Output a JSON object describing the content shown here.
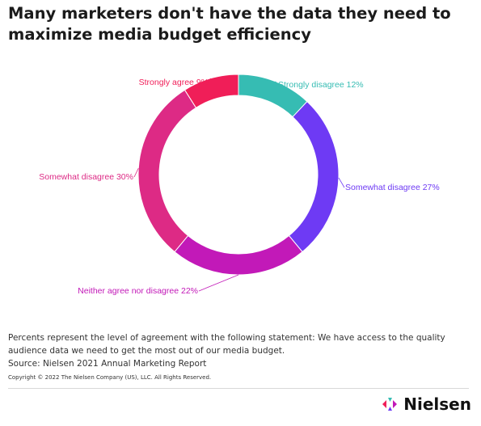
{
  "title": "Many marketers don't have the data they need to maximize media budget efficiency",
  "note": "Percents represent the level of agreement with the following statement: We have access to the quality audience data we need to get the most out of our media budget.",
  "source": "Source: Nielsen 2021 Annual Marketing Report",
  "copyright": "Copyright © 2022 The Nielsen Company (US), LLC. All Rights Reserved.",
  "logo": {
    "text": "Nielsen",
    "icon": "nielsen-logo-icon"
  },
  "chart_data": {
    "type": "pie",
    "donut": true,
    "slices": [
      {
        "label": "Strongly disagree 12%",
        "value": 12,
        "color": "#36bcb3"
      },
      {
        "label": "Somewhat disagree 27%",
        "value": 27,
        "color": "#6e3af4"
      },
      {
        "label": "Neither agree nor disagree 22%",
        "value": 22,
        "color": "#c219b8"
      },
      {
        "label": "Somewhat disagree 30%",
        "value": 30,
        "color": "#dd2a85"
      },
      {
        "label": "Strongly agree 9%",
        "value": 9,
        "color": "#f01e58"
      }
    ]
  }
}
